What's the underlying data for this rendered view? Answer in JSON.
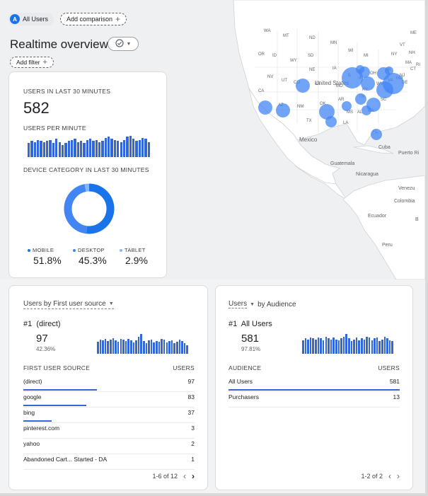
{
  "header": {
    "segment_letter": "A",
    "segment_label": "All Users",
    "comparison_label": "Add comparison",
    "title": "Realtime overview",
    "filter_label": "Add filter"
  },
  "map": {
    "labels": {
      "states": [
        "WA",
        "MT",
        "ND",
        "MN",
        "WI",
        "MI",
        "NY",
        "ME",
        "VT",
        "OR",
        "ID",
        "SD",
        "WY",
        "NE",
        "IA",
        "IL",
        "IN",
        "OH",
        "PA",
        "NJ",
        "MA",
        "NH",
        "NV",
        "UT",
        "CO",
        "KS",
        "MO",
        "KY",
        "WV",
        "VA",
        "MD",
        "DE",
        "CT",
        "RI",
        "CA",
        "AZ",
        "NM",
        "OK",
        "AR",
        "TN",
        "NC",
        "SC",
        "MS",
        "AL",
        "GA",
        "LA",
        "TX",
        "FL"
      ],
      "countries": [
        "United States",
        "Mexico",
        "Cuba",
        "Puerto Ri",
        "Guatemala",
        "Nicaragua",
        "Venezu",
        "Colombia",
        "Ecuador",
        "Peru",
        "B"
      ]
    },
    "bubble_color": "#4285f4"
  },
  "realtime_card": {
    "users_label": "USERS IN LAST 30 MINUTES",
    "users_value": "582",
    "per_minute_label": "USERS PER MINUTE",
    "per_minute_bars": [
      14,
      16,
      15,
      17,
      16,
      15,
      16,
      17,
      14,
      18,
      15,
      12,
      14,
      16,
      17,
      18,
      15,
      16,
      14,
      17,
      18,
      16,
      17,
      15,
      16,
      19,
      20,
      18,
      17,
      16,
      15,
      17,
      20,
      21,
      18,
      16,
      17,
      19,
      18,
      15
    ],
    "device_label": "DEVICE CATEGORY IN LAST 30 MINUTES",
    "devices": [
      {
        "name": "MOBILE",
        "value": "51.8%",
        "share": 0.518,
        "color": "#1a73e8"
      },
      {
        "name": "DESKTOP",
        "value": "45.3%",
        "share": 0.453,
        "color": "#4285f4"
      },
      {
        "name": "TABLET",
        "value": "2.9%",
        "share": 0.029,
        "color": "#8ab4f8"
      }
    ]
  },
  "source_card": {
    "dropdown_label": "Users by First user source",
    "top_rank": "#1",
    "top_name": "(direct)",
    "top_value": "97",
    "top_pct": "42.36%",
    "spark_bars": [
      15,
      18,
      17,
      19,
      16,
      18,
      20,
      17,
      15,
      19,
      18,
      16,
      19,
      17,
      14,
      17,
      21,
      25,
      16,
      13,
      17,
      18,
      14,
      16,
      15,
      19,
      18,
      14,
      16,
      17,
      13,
      15,
      18,
      16,
      13,
      11
    ],
    "col_source": "FIRST USER SOURCE",
    "col_users": "USERS",
    "rows": [
      {
        "label": "(direct)",
        "value": "97",
        "share": 1.0
      },
      {
        "label": "google",
        "value": "83",
        "share": 0.856
      },
      {
        "label": "bing",
        "value": "37",
        "share": 0.381
      },
      {
        "label": "pinterest.com",
        "value": "3",
        "share": 0.031
      },
      {
        "label": "yahoo",
        "value": "2",
        "share": 0.021
      },
      {
        "label": "Abandoned Cart... Started - DA",
        "value": "1",
        "share": 0.01
      }
    ],
    "pager_text": "1-6 of 12"
  },
  "audience_card": {
    "dropdown_label": "Users",
    "by_label": "by Audience",
    "top_rank": "#1",
    "top_name": "All Users",
    "top_value": "581",
    "top_pct": "97.81%",
    "spark_bars": [
      15,
      17,
      16,
      18,
      17,
      16,
      18,
      17,
      15,
      19,
      17,
      16,
      18,
      16,
      15,
      17,
      19,
      22,
      17,
      14,
      16,
      18,
      15,
      17,
      16,
      19,
      18,
      15,
      17,
      18,
      14,
      16,
      19,
      17,
      15,
      14
    ],
    "col_audience": "AUDIENCE",
    "col_users": "USERS",
    "rows": [
      {
        "label": "All Users",
        "value": "581",
        "share": 1.0
      },
      {
        "label": "Purchasers",
        "value": "13",
        "share": 0.022
      }
    ],
    "pager_text": "1-2 of 2"
  }
}
